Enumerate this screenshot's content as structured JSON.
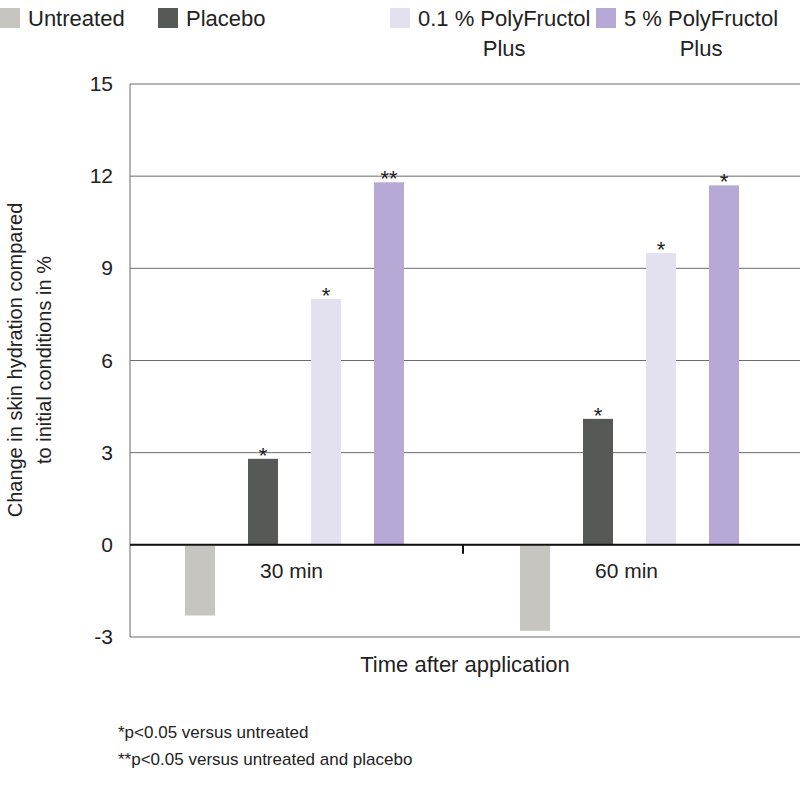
{
  "chart_data": {
    "type": "bar",
    "categories": [
      "30 min",
      "60 min"
    ],
    "series": [
      {
        "name": "Untreated",
        "color": "#c6c5c0",
        "values": [
          -2.3,
          -2.8
        ],
        "annotations": [
          null,
          null
        ]
      },
      {
        "name": "Placebo",
        "color": "#555a57",
        "values": [
          2.8,
          4.1
        ],
        "annotations": [
          "*",
          "*"
        ]
      },
      {
        "name": "0.1 % PolyFructol Plus",
        "color": "#e3e0ef",
        "values": [
          8.0,
          9.5
        ],
        "annotations": [
          "*",
          "*"
        ]
      },
      {
        "name": "5 % PolyFructol Plus",
        "color": "#b6a9d5",
        "values": [
          11.8,
          11.7
        ],
        "annotations": [
          "**",
          "*"
        ]
      }
    ],
    "x_label": "Time after application",
    "y_label": [
      "Change in skin hydration compared",
      "to initial conditions in %"
    ],
    "ylim": [
      -3,
      15
    ],
    "yticks": [
      -3,
      0,
      3,
      6,
      9,
      12,
      15
    ],
    "grid": true,
    "legend": "top",
    "footnotes": [
      "*p<0.05 versus untreated",
      "**p<0.05 versus untreated and placebo"
    ]
  }
}
